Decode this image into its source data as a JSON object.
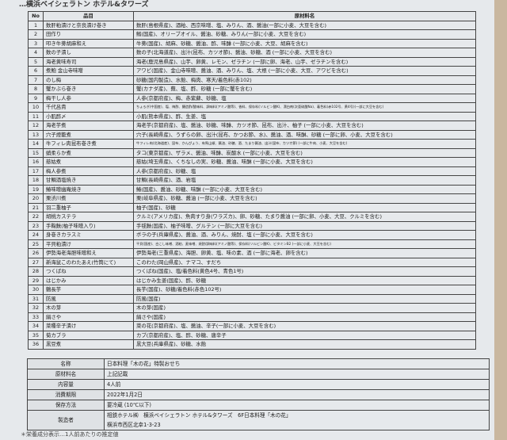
{
  "heading": "…横浜ベイシェラトン ホテル&タワーズ",
  "table": {
    "headers": [
      "No",
      "品目",
      "原材料名"
    ],
    "rows": [
      [
        "1",
        "数肝粕漬けと奈良漬け巻き",
        "数肝(島根県産)、酒粕、西京味噌、塩、みりん、酒、醤油(一部に小麦、大豆を含む)"
      ],
      [
        "2",
        "田作り",
        "鰯(国産)、オリーブオイル、醤油、砂糖、みりん(一部に小麦、大豆を含む)"
      ],
      [
        "3",
        "叩き牛蒡胡麻和え",
        "牛蒡(国産)、胡麻、砂糖、醤油、酢、味醂 (一部に小麦、大豆、胡麻を含む)"
      ],
      [
        "4",
        "数の子漬し",
        "数の子(北海道産)、出汁(昆布、カツオ節)、醤油、砂糖、酒 (一部に小麦、大豆を含む)"
      ],
      [
        "5",
        "海老黄味寿司",
        "海老(鹿児島県産)、山芋、卵黄、レモン、ゼラチン (一部に卵、海老、山芋、ゼラチンを含む)"
      ],
      [
        "6",
        "煮鮑 金山寺味噌",
        "アワビ(国産)、金山寺味噌、醤油、酒、みりん、塩、大根 (一部に小麦、大豆、アワビを含む)"
      ],
      [
        "7",
        "のし梅",
        "砂糖(国内製造)、水飴、梅肉、寒天/着色料(赤102)"
      ],
      [
        "8",
        "蟹かぶら巻き",
        "蟹(カナダ産)、蕪、塩、酢、砂糖 (一部に蟹を含む)"
      ],
      [
        "9",
        "梅干し人参",
        "人参(京都府産)、梅、赤紫蘇、砂糖、塩"
      ],
      [
        "10",
        "千代呂貴",
        "ちょろぎ(中国産)、塩、梅酢、醸造酢/酸味料、調味料(アミノ酸等)、香料、保存料(ソルビン酸K)、漂白剤(次亜硫酸Na)、着色料(赤102号、黄4号)(一部に大豆を含む)"
      ],
      [
        "11",
        "小肌酢〆",
        "小肌(熊本県産)、酢、生姜、塩"
      ],
      [
        "12",
        "海老芋煮",
        "海老芋(京都府産)、塩、醤油、砂糖、味醂、カツオ節、昆布、出汁、柚子 (一部に小麦、大豆を含む)"
      ],
      [
        "13",
        "穴子燈籠煮",
        "穴子(長崎県産)、うずらの卵、出汁(昆布、かつお節、水)、醤油、酒、味醂、砂糖 (一部に卵、小麦、大豆を含む)"
      ],
      [
        "14",
        "牛フィレ肉昆布巻き煮",
        "牛フィレ肉(北海道産)、昆布、かんぴょう、有馬山椒、醤油、砂糖、酒、たまり醤油、出汁(昆布、カツオ節) (一部に牛肉、小麦、大豆を含む)"
      ],
      [
        "15",
        "蛸柔らか煮",
        "タコ(東京都産)、ザラメ、醤油、味醂、炭酸水 (一部に小麦、大豆を含む)"
      ],
      [
        "16",
        "慈姑煮",
        "慈姑(埼玉県産)、くちなしの実、砂糖、醤油、味醂 (一部に小麦、大豆を含む)"
      ],
      [
        "17",
        "梅人参煮",
        "人参(京都府産)、砂糖、塩"
      ],
      [
        "18",
        "甘鯛酒塩焼き",
        "甘鯛(長崎県産)、酒、岩塩"
      ],
      [
        "19",
        "鰆味噌幽庵焼き",
        "鰆(国産)、醤油、砂糖、味醂 (一部に小麦、大豆を含む)"
      ],
      [
        "20",
        "栗渋川煮",
        "栗(岐阜県産)、砂糖、醤油 (一部に小麦、大豆を含む)"
      ],
      [
        "21",
        "羽二重柚子",
        "柚子(国産)、砂糖"
      ],
      [
        "22",
        "胡桃カステラ",
        "クルミ(アメリカ産)、魚肉すり身(ワラズカ)、卵、砂糖、たまり醤油 (一部に卵、小麦、大豆、クルミを含む)"
      ],
      [
        "23",
        "手鞠麩(柚子味噌入り)",
        "手毬麩(国産)、柚子味噌、グルテン (一部に大豆を含む)"
      ],
      [
        "24",
        "身巻きカラスミ",
        "ボラの子(兵庫県産)、醤油、酒、みりん、焼酎、塩 (一部に小麦、大豆を含む)"
      ],
      [
        "25",
        "平貝粕漬け",
        "平貝(国産)、白こし味噌、酒粕、麦味噌、焼酎/調味料(アミノ酸等)、保存料(ソルビン酸K)、ビタミンB2 (一部に小麦、大豆を含む)"
      ],
      [
        "26",
        "伊勢海老海胆味噌和え",
        "伊勢海老(三重県産)、海胆、卵黄、塩、味の素、酒 (一部に海老、卵を含む)"
      ],
      [
        "27",
        "新海鼠このわたあえ(竹筒にて)",
        "このわた(岡山県産)、ナマコ、すだち"
      ],
      [
        "28",
        "つくばね",
        "つくばね(国産)、塩/着色料(黄色4号、青色1号)"
      ],
      [
        "29",
        "はじかみ",
        "はじかみ生姜(国産)、酢、砂糖"
      ],
      [
        "30",
        "鶴長芋",
        "長芋(国産)、砂糖/着色料(赤色102号)"
      ],
      [
        "31",
        "防風",
        "防風(国産)"
      ],
      [
        "32",
        "木の芽",
        "木の芽(国産)"
      ],
      [
        "33",
        "絹さや",
        "絹さや(国産)"
      ],
      [
        "34",
        "菜種辛子漬け",
        "菜の花(京都府産)、塩、醤油、辛子(一部に小麦、大豆を含む)"
      ],
      [
        "35",
        "菊カブラ",
        "カブ(京都府産)、塩、酢、砂糖、唐辛子"
      ],
      [
        "36",
        "黒豆煮",
        "黒大豆(兵庫県産)、砂糖、水飴"
      ]
    ]
  },
  "info": [
    [
      "名称",
      "日本料理「木の花」特製おせち"
    ],
    [
      "原材料名",
      "上記記載"
    ],
    [
      "内容量",
      "4人前"
    ],
    [
      "消費期限",
      "2022年1月2日"
    ],
    [
      "保存方法",
      "要冷蔵 (10℃以下)"
    ],
    [
      "製造者",
      "相鉄ホテル㈱　横浜ベイシェラトン ホテル&タワーズ　6F日本料理「木の花」",
      "横浜市西区北幸1-3-23"
    ]
  ],
  "footer": "＊栄養成分表示…1人前あたりの推定値"
}
